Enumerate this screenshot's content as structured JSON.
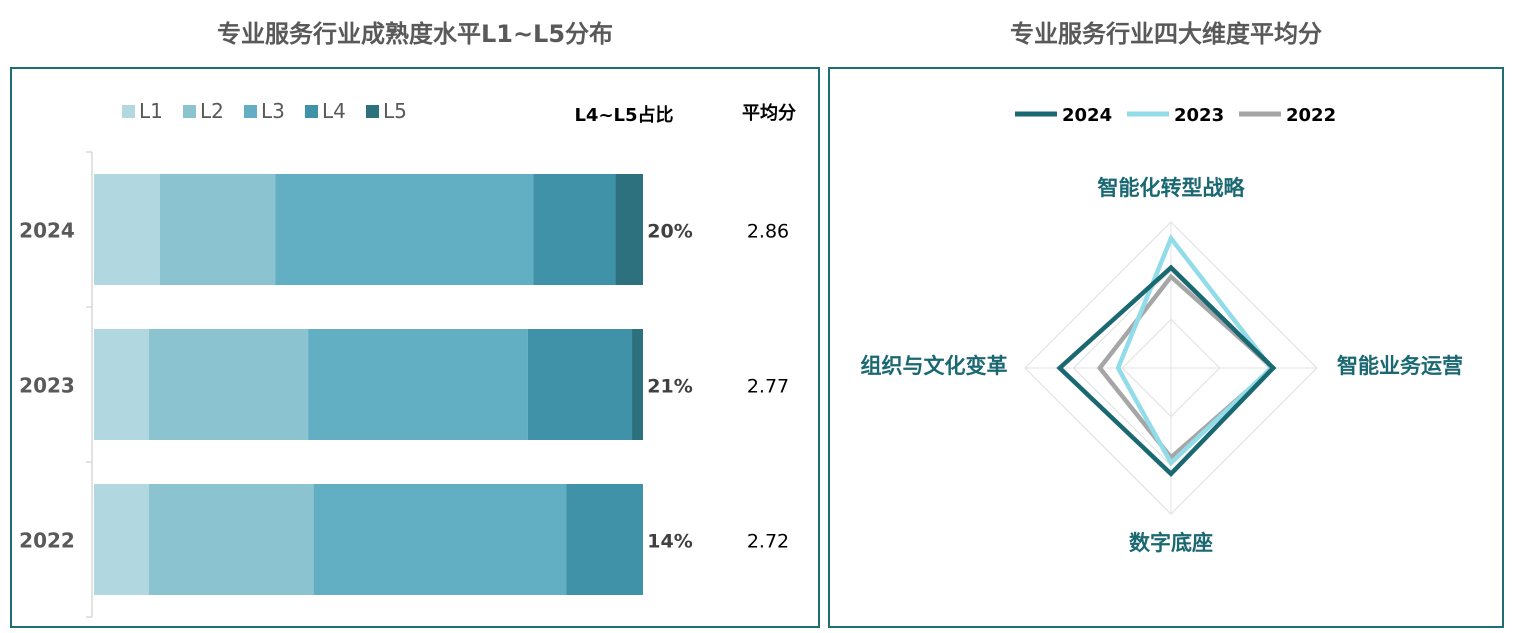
{
  "chart_data": [
    {
      "type": "bar",
      "orientation": "horizontal",
      "stacked": true,
      "title": "专业服务行业成熟度水平L1~L5分布",
      "categories": [
        "2024",
        "2023",
        "2022"
      ],
      "series": [
        {
          "name": "L1",
          "values": [
            12,
            10,
            10
          ],
          "color": "#b1d7e0"
        },
        {
          "name": "L2",
          "values": [
            21,
            29,
            30
          ],
          "color": "#8bc3d0"
        },
        {
          "name": "L3",
          "values": [
            47,
            40,
            46
          ],
          "color": "#62aec2"
        },
        {
          "name": "L4",
          "values": [
            15,
            19,
            14
          ],
          "color": "#3f92a7"
        },
        {
          "name": "L5",
          "values": [
            5,
            2,
            0
          ],
          "color": "#2e717e"
        }
      ],
      "legend_position": "top-left",
      "ratio_header": "L4~L5占比",
      "ratio_values": [
        "20%",
        "21%",
        "14%"
      ],
      "score_header": "平均分",
      "score_values": [
        "2.86",
        "2.77",
        "2.72"
      ]
    },
    {
      "type": "radar",
      "title": "专业服务行业四大维度平均分",
      "axes": [
        "智能化转型战略",
        "智能业务运营",
        "数字底座",
        "组织与文化变革"
      ],
      "series": [
        {
          "name": "2024",
          "values": [
            2.75,
            2.8,
            2.9,
            3.05
          ],
          "color": "#1a6872"
        },
        {
          "name": "2023",
          "values": [
            3.55,
            2.75,
            2.6,
            1.45
          ],
          "color": "#92dce9"
        },
        {
          "name": "2022",
          "values": [
            2.5,
            2.8,
            2.45,
            1.95
          ],
          "color": "#a6a6a6"
        }
      ],
      "legend_position": "top",
      "grid_rings": 3
    }
  ]
}
